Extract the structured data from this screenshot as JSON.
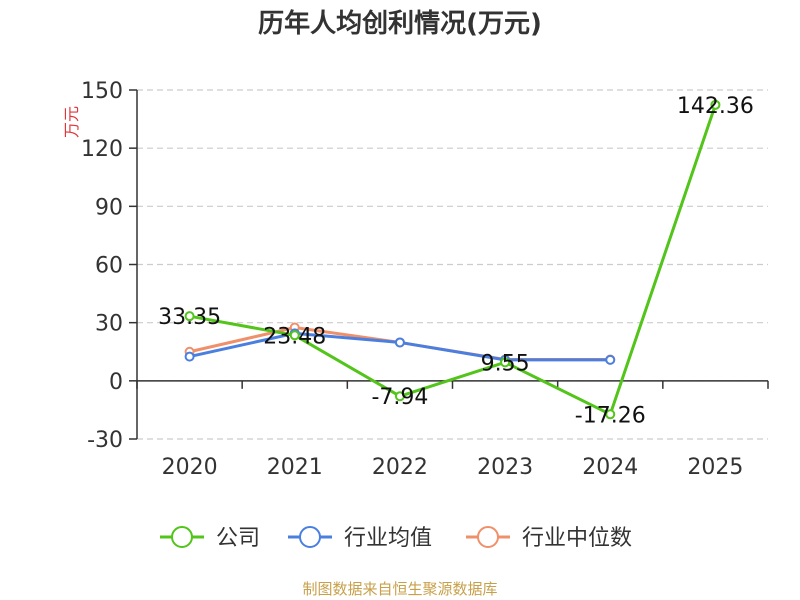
{
  "chart_data": {
    "type": "line",
    "title": "历年人均创利情况(万元)",
    "ylabel": "万元",
    "categories": [
      "2020",
      "2021",
      "2022",
      "2023",
      "2024",
      "2025"
    ],
    "ylim": [
      -30,
      150
    ],
    "yticks": [
      -30,
      0,
      30,
      60,
      90,
      120,
      150
    ],
    "grid": true,
    "legend_position": "bottom",
    "series": [
      {
        "name": "公司",
        "color": "#52c41a",
        "values": [
          33.35,
          23.48,
          -7.94,
          9.55,
          -17.26,
          142.36
        ],
        "labels": [
          "33.35",
          "23.48",
          "-7.94",
          "9.55",
          "-17.26",
          "142.36"
        ]
      },
      {
        "name": "行业均值",
        "color": "#4a7fe0",
        "values": [
          12.5,
          24.5,
          19.8,
          10.8,
          10.8,
          null
        ]
      },
      {
        "name": "行业中位数",
        "color": "#f0906a",
        "values": [
          15.0,
          27.5,
          19.8,
          11.0,
          11.0,
          null
        ]
      }
    ]
  },
  "source": "制图数据来自恒生聚源数据库"
}
